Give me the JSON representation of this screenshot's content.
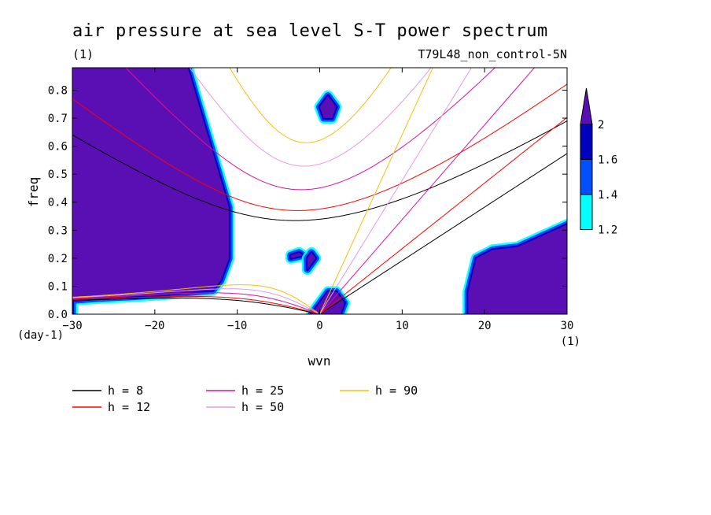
{
  "chart_data": {
    "type": "heatmap",
    "title": "air pressure at sea level S-T power spectrum",
    "unit_label": "(1)",
    "run_label": "T79L48_non_control-5N",
    "xlabel": "wvn",
    "ylabel": "freq",
    "x_unit": "(1)",
    "y_unit": "(day-1)",
    "xlim": [
      -30,
      30
    ],
    "ylim": [
      0,
      0.88
    ],
    "x_ticks": [
      -30,
      -20,
      -10,
      0,
      10,
      20,
      30
    ],
    "x_tick_labels": [
      "−30",
      "−20",
      "−10",
      "0",
      "10",
      "20",
      "30"
    ],
    "y_ticks": [
      0,
      0.1,
      0.2,
      0.3,
      0.4,
      0.5,
      0.6,
      0.7,
      0.8
    ],
    "y_tick_labels": [
      "0.0",
      "0.1",
      "0.2",
      "0.3",
      "0.4",
      "0.5",
      "0.6",
      "0.7",
      "0.8"
    ],
    "colorbar": {
      "levels": [
        1.2,
        1.4,
        1.6,
        2
      ],
      "labels": [
        "1.2",
        "1.4",
        "1.6",
        "2"
      ],
      "colors": [
        "#00ffff",
        "#0050ff",
        "#0000c0",
        "#5a0fb4"
      ],
      "extend": "max"
    },
    "dispersion_curves": [
      {
        "h": 8,
        "label": "h =  8",
        "color": "#000000"
      },
      {
        "h": 12,
        "label": "h = 12",
        "color": "#ff0000"
      },
      {
        "h": 25,
        "label": "h = 25",
        "color": "#e0109a"
      },
      {
        "h": 50,
        "label": "h = 50",
        "color": "#e39be0"
      },
      {
        "h": 90,
        "label": "h = 90",
        "color": "#f2c10c"
      }
    ],
    "filled_regions": [
      {
        "level": 2,
        "desc": "west",
        "x": [
          -30,
          -30,
          -16,
          -15,
          -14,
          -13,
          -12,
          -11,
          -11,
          -12,
          -13,
          -15,
          -17,
          -19,
          -21,
          -23,
          -26,
          -30
        ],
        "y": [
          0,
          0.88,
          0.88,
          0.78,
          0.68,
          0.58,
          0.48,
          0.38,
          0.2,
          0.12,
          0.085,
          0.08,
          0.075,
          0.07,
          0.066,
          0.062,
          0.058,
          0.05
        ]
      },
      {
        "level": 2,
        "desc": "east",
        "x": [
          18,
          18,
          19,
          21,
          24,
          27,
          30,
          30
        ],
        "y": [
          0,
          0.08,
          0.2,
          0.23,
          0.24,
          0.28,
          0.32,
          0
        ]
      },
      {
        "level": 2,
        "desc": "origin",
        "x": [
          -1,
          0,
          1,
          2,
          3,
          2.5,
          1.5
        ],
        "y": [
          0,
          0.04,
          0.08,
          0.08,
          0.04,
          0,
          0
        ]
      },
      {
        "level": 2,
        "desc": "blob",
        "x": [
          0,
          1,
          2,
          1.5,
          0.5
        ],
        "y": [
          0.74,
          0.78,
          0.74,
          0.7,
          0.7
        ]
      },
      {
        "level": 2,
        "desc": "blob",
        "x": [
          -3.5,
          -2,
          -2.5,
          -3.5
        ],
        "y": [
          0.2,
          0.21,
          0.22,
          0.21
        ]
      },
      {
        "level": 2,
        "desc": "blob",
        "x": [
          -1.5,
          -0.5,
          -1,
          -1.5
        ],
        "y": [
          0.16,
          0.2,
          0.22,
          0.2
        ]
      }
    ]
  },
  "legend_caption": ""
}
